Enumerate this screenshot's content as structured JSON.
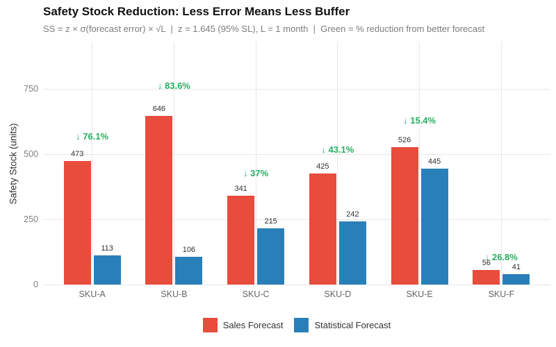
{
  "chart_data": {
    "type": "bar",
    "title": "Safety Stock Reduction: Less Error Means Less Buffer",
    "subtitle": "SS = z × σ(forecast error) × √L  |  z = 1.645 (95% SL), L = 1 month  |  Green = % reduction from better forecast",
    "categories": [
      "SKU-A",
      "SKU-B",
      "SKU-C",
      "SKU-D",
      "SKU-E",
      "SKU-F"
    ],
    "series": [
      {
        "name": "Sales Forecast",
        "color": "#e74c3c",
        "values": [
          473,
          646,
          341,
          425,
          526,
          56
        ]
      },
      {
        "name": "Statistical Forecast",
        "color": "#2980b9",
        "values": [
          113,
          106,
          215,
          242,
          445,
          41
        ]
      }
    ],
    "bar_value_labels": [
      [
        473,
        646,
        341,
        425,
        526,
        56
      ],
      [
        113,
        106,
        215,
        242,
        445,
        41
      ]
    ],
    "annotations": [
      {
        "category": "SKU-A",
        "text": "↓ 76.1%",
        "y": 566
      },
      {
        "category": "SKU-B",
        "text": "↓ 83.6%",
        "y": 761
      },
      {
        "category": "SKU-C",
        "text": "↓ 37%",
        "y": 426
      },
      {
        "category": "SKU-D",
        "text": "↓ 43.1%",
        "y": 516
      },
      {
        "category": "SKU-E",
        "text": "↓ 15.4%",
        "y": 628
      },
      {
        "category": "SKU-F",
        "text": "↓ 26.8%",
        "y": 104
      }
    ],
    "annotation_color": "#27ae60",
    "xlabel": "",
    "ylabel": "Safety Stock (units)",
    "yticks": [
      0,
      250,
      500,
      750
    ],
    "ylim": [
      0,
      930
    ],
    "grid": true,
    "gridline_color": "#e7e7e7",
    "legend_position": "bottom"
  }
}
